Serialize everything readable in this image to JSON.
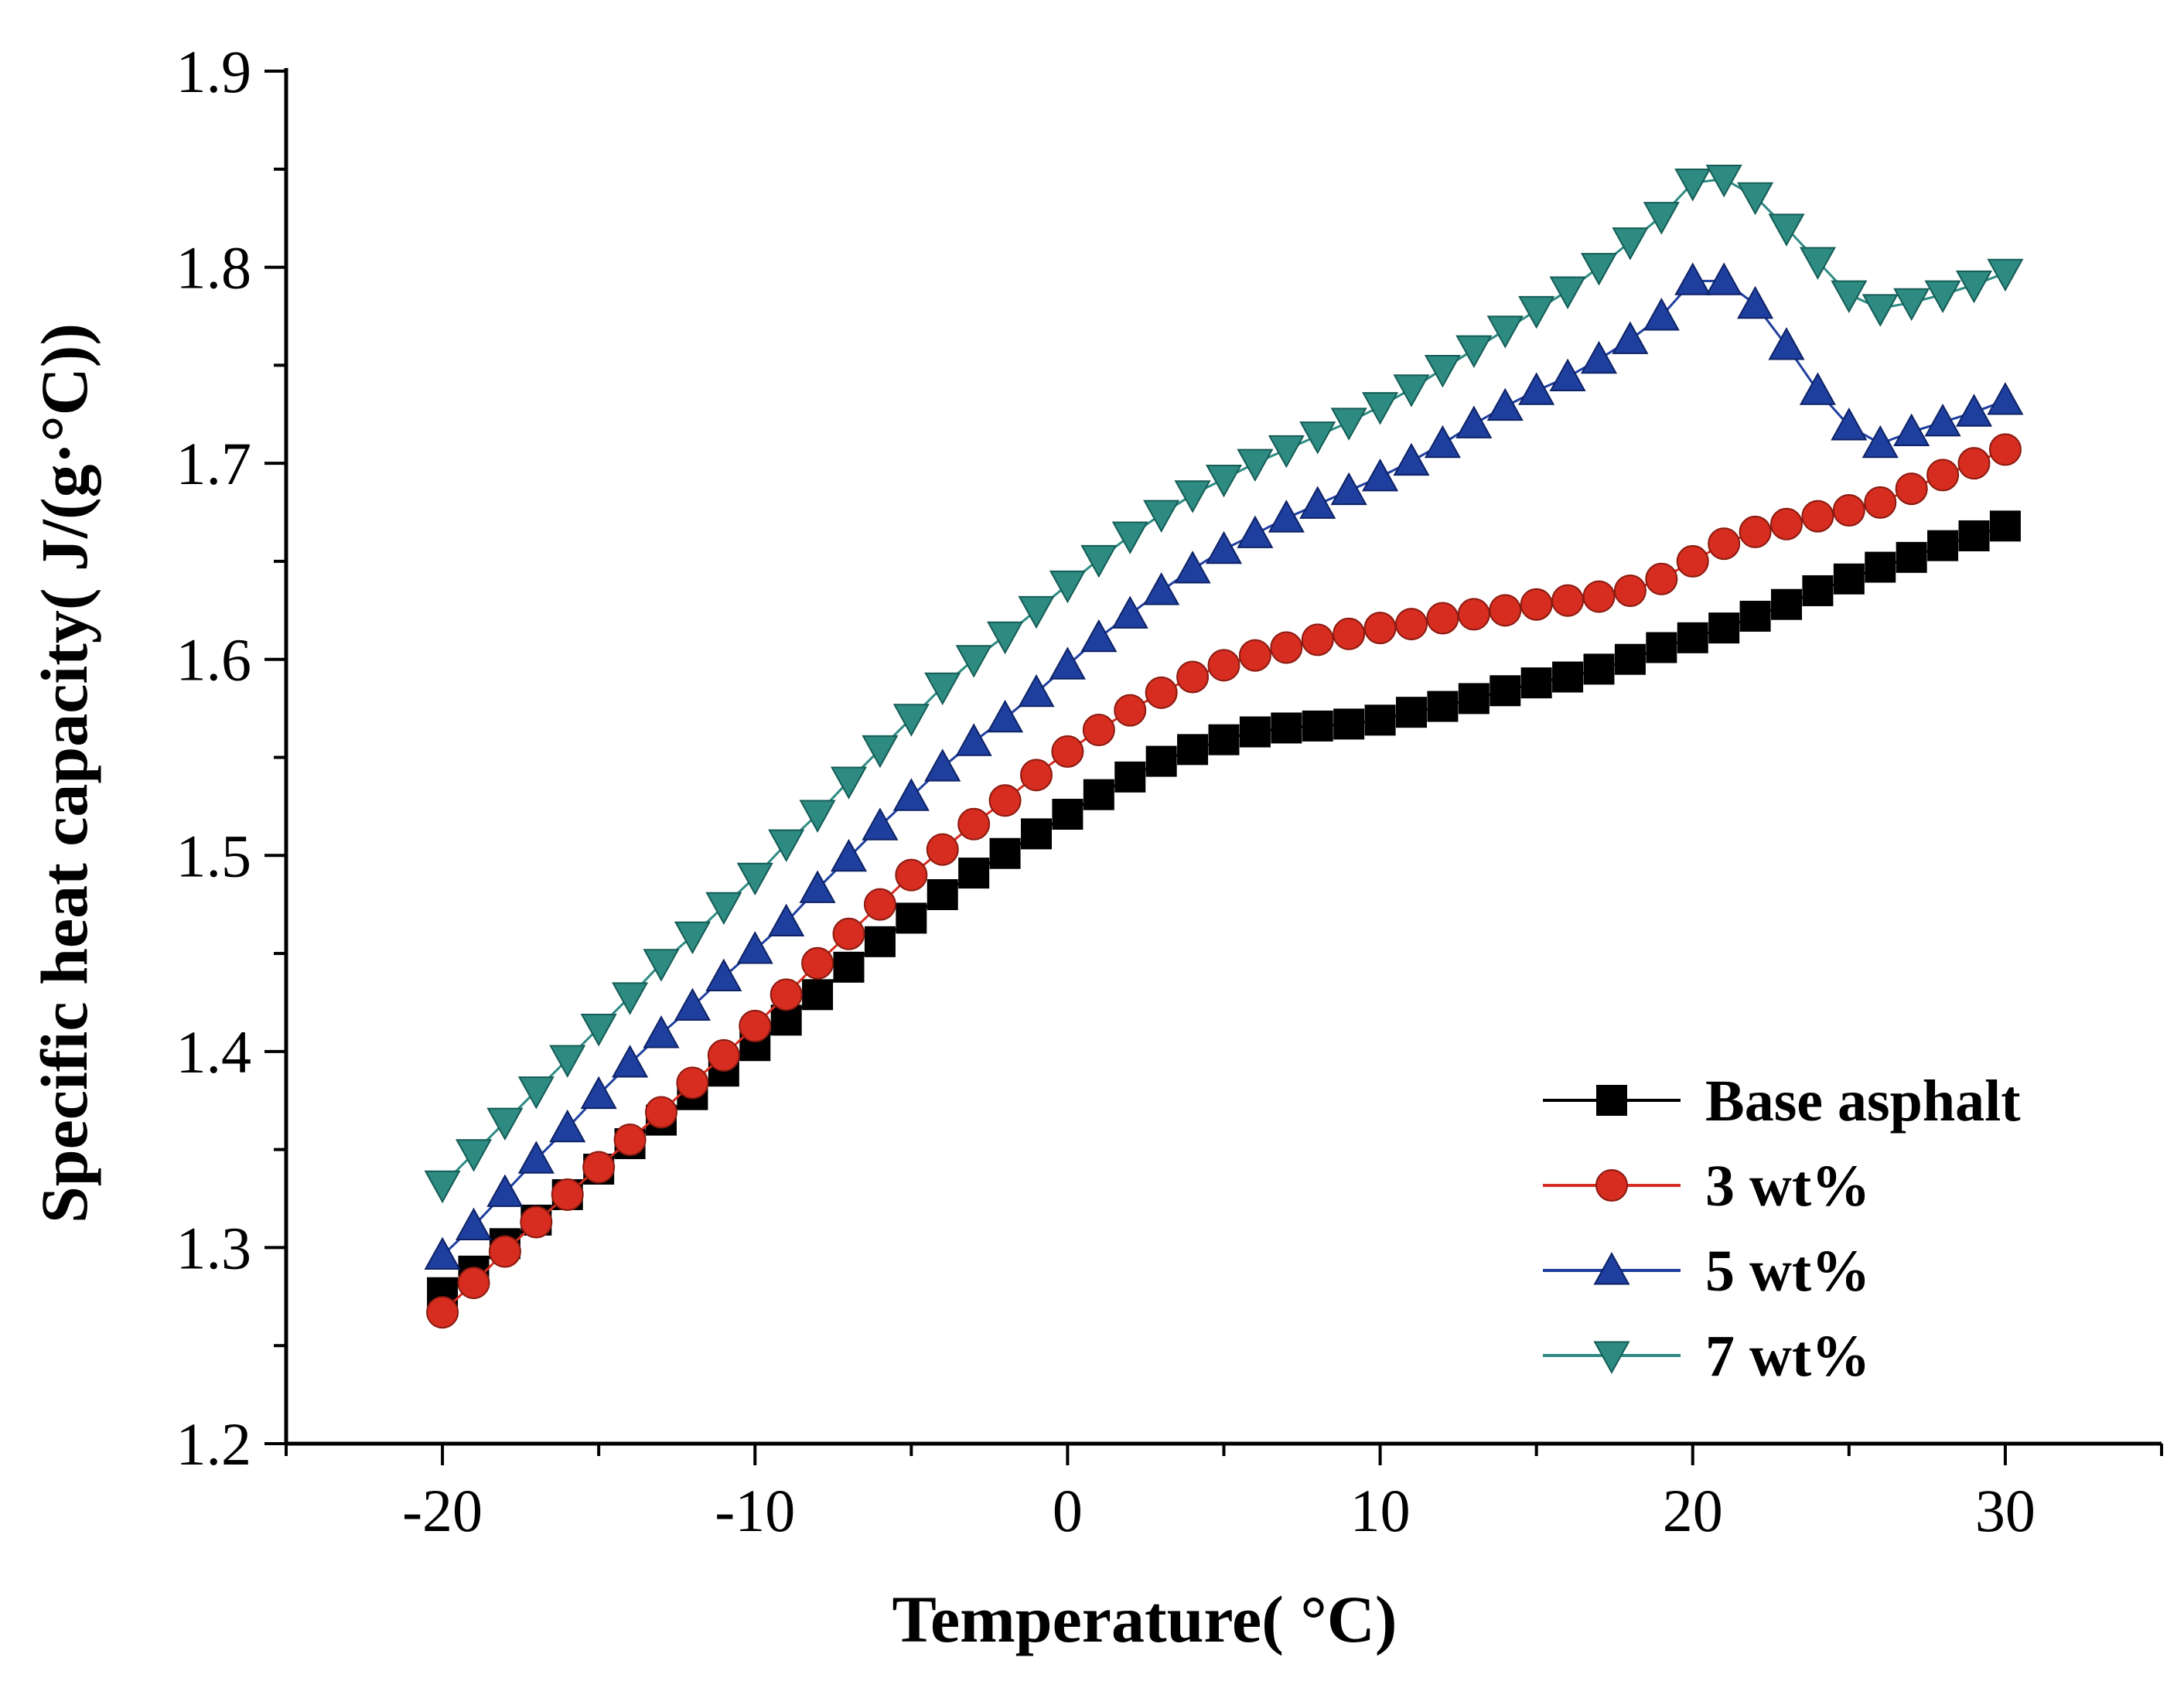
{
  "chart_data": {
    "type": "line",
    "title": "",
    "xlabel": "Temperature( °C)",
    "ylabel": "Specific heat capacity( J/(g·°C))",
    "xlim": [
      -25,
      35
    ],
    "ylim": [
      1.2,
      1.9
    ],
    "xticks": [
      -20,
      -10,
      0,
      10,
      20,
      30
    ],
    "xtick_labels": [
      "-20",
      "-10",
      "0",
      "10",
      "20",
      "30"
    ],
    "yticks": [
      1.2,
      1.3,
      1.4,
      1.5,
      1.6,
      1.7,
      1.8,
      1.9
    ],
    "ytick_labels": [
      "1.2",
      "1.3",
      "1.4",
      "1.5",
      "1.6",
      "1.7",
      "1.8",
      "1.9"
    ],
    "grid": false,
    "legend_position": "bottom-right",
    "x": [
      -20,
      -19,
      -18,
      -17,
      -16,
      -15,
      -14,
      -13,
      -12,
      -11,
      -10,
      -9,
      -8,
      -7,
      -6,
      -5,
      -4,
      -3,
      -2,
      -1,
      0,
      1,
      2,
      3,
      4,
      5,
      6,
      7,
      8,
      9,
      10,
      11,
      12,
      13,
      14,
      15,
      16,
      17,
      18,
      19,
      20,
      21,
      22,
      23,
      24,
      25,
      26,
      27,
      28,
      29,
      30
    ],
    "series": [
      {
        "name": "Base asphalt",
        "color": "#000000",
        "marker": "square",
        "values": [
          1.277,
          1.288,
          1.302,
          1.314,
          1.327,
          1.34,
          1.353,
          1.365,
          1.378,
          1.39,
          1.403,
          1.416,
          1.429,
          1.443,
          1.456,
          1.468,
          1.48,
          1.491,
          1.501,
          1.511,
          1.521,
          1.531,
          1.54,
          1.548,
          1.554,
          1.559,
          1.563,
          1.565,
          1.566,
          1.567,
          1.569,
          1.573,
          1.576,
          1.58,
          1.584,
          1.588,
          1.591,
          1.595,
          1.6,
          1.606,
          1.611,
          1.616,
          1.622,
          1.628,
          1.635,
          1.641,
          1.647,
          1.652,
          1.658,
          1.663,
          1.668
        ]
      },
      {
        "name": "3 wt%",
        "color": "#d62d20",
        "marker": "circle",
        "values": [
          1.267,
          1.282,
          1.298,
          1.313,
          1.327,
          1.341,
          1.355,
          1.369,
          1.384,
          1.398,
          1.413,
          1.429,
          1.445,
          1.46,
          1.475,
          1.49,
          1.503,
          1.516,
          1.528,
          1.541,
          1.553,
          1.564,
          1.574,
          1.583,
          1.591,
          1.597,
          1.602,
          1.606,
          1.61,
          1.613,
          1.616,
          1.618,
          1.621,
          1.623,
          1.625,
          1.628,
          1.63,
          1.632,
          1.635,
          1.641,
          1.65,
          1.659,
          1.665,
          1.669,
          1.673,
          1.676,
          1.68,
          1.687,
          1.694,
          1.7,
          1.707
        ]
      },
      {
        "name": "5 wt%",
        "color": "#1f3f9f",
        "marker": "triangle-up",
        "values": [
          1.296,
          1.311,
          1.328,
          1.345,
          1.361,
          1.378,
          1.394,
          1.409,
          1.423,
          1.438,
          1.452,
          1.466,
          1.483,
          1.499,
          1.515,
          1.53,
          1.545,
          1.558,
          1.57,
          1.583,
          1.597,
          1.611,
          1.623,
          1.635,
          1.646,
          1.656,
          1.664,
          1.672,
          1.679,
          1.686,
          1.693,
          1.701,
          1.71,
          1.72,
          1.729,
          1.737,
          1.744,
          1.753,
          1.763,
          1.775,
          1.793,
          1.793,
          1.781,
          1.76,
          1.737,
          1.719,
          1.71,
          1.716,
          1.721,
          1.726,
          1.732
        ]
      },
      {
        "name": "7 wt%",
        "color": "#2e8b82",
        "marker": "triangle-down",
        "values": [
          1.332,
          1.348,
          1.364,
          1.38,
          1.396,
          1.412,
          1.428,
          1.445,
          1.459,
          1.474,
          1.489,
          1.506,
          1.521,
          1.538,
          1.554,
          1.57,
          1.586,
          1.6,
          1.612,
          1.625,
          1.638,
          1.651,
          1.663,
          1.674,
          1.684,
          1.692,
          1.7,
          1.707,
          1.714,
          1.721,
          1.729,
          1.738,
          1.748,
          1.758,
          1.768,
          1.778,
          1.788,
          1.8,
          1.813,
          1.826,
          1.843,
          1.845,
          1.836,
          1.82,
          1.803,
          1.786,
          1.779,
          1.782,
          1.786,
          1.791,
          1.797
        ]
      }
    ]
  }
}
